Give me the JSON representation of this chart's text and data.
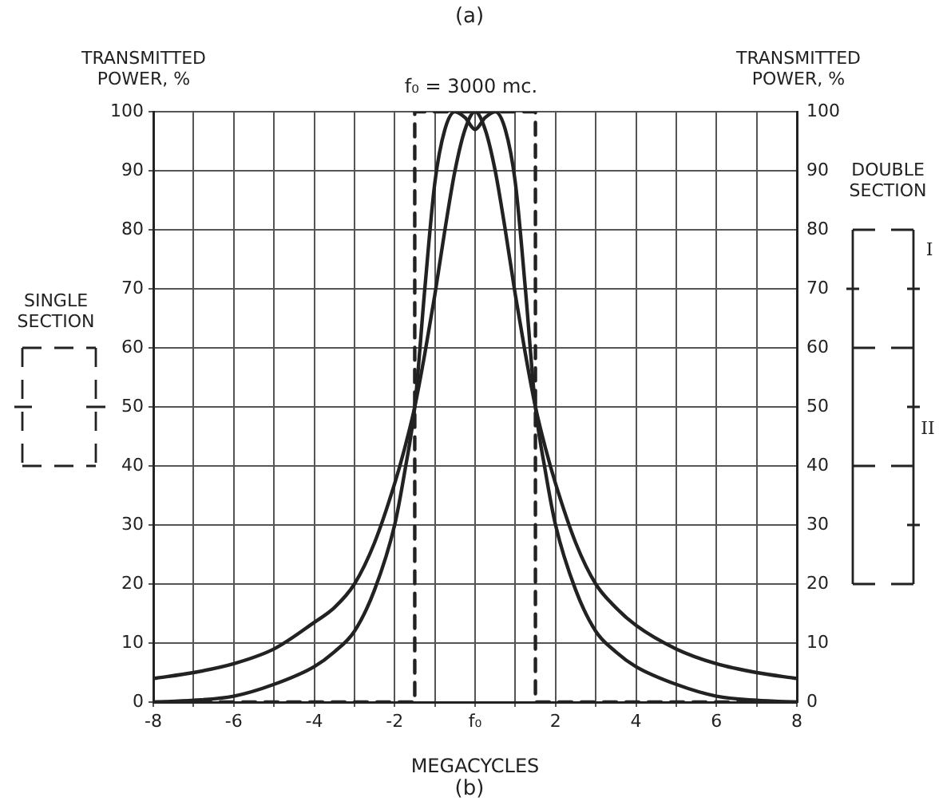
{
  "chart_data": {
    "type": "line",
    "title": "f₀ = 3000 mc.",
    "xlabel": "MEGACYCLES",
    "ylabel": "TRANSMITTED POWER, %",
    "y2label": "TRANSMITTED POWER, %",
    "annotations": [
      "(a)",
      "(b)",
      "SINGLE SECTION",
      "DOUBLE SECTION",
      "I",
      "II"
    ],
    "series": [
      {
        "color": "#222222",
        "x": [
          -8,
          -7,
          -6,
          -5,
          -4,
          -3.5,
          -3,
          -2.5,
          -2,
          -1.75,
          -1.5,
          -1.25,
          -1,
          -0.75,
          -0.5,
          -0.25,
          0,
          0.25,
          0.5,
          0.75,
          1,
          1.25,
          1.5,
          1.75,
          2,
          2.5,
          3,
          3.5,
          4,
          5,
          6,
          7,
          8
        ],
        "values": [
          4,
          5,
          6.5,
          9,
          13.5,
          16,
          20,
          27,
          37,
          43,
          50,
          59,
          69,
          80,
          90,
          97,
          100,
          97,
          90,
          80,
          69,
          59,
          50,
          43,
          37,
          27,
          20,
          16,
          13,
          9,
          6.5,
          5,
          4
        ]
      },
      {
        "color": "#222222",
        "x": [
          -8,
          -7,
          -6,
          -5,
          -4,
          -3.5,
          -3,
          -2.5,
          -2,
          -1.75,
          -1.5,
          -1.25,
          -1,
          -0.75,
          -0.5,
          -0.25,
          0,
          0.25,
          0.5,
          0.75,
          1,
          1.25,
          1.5,
          1.75,
          2,
          2.5,
          3,
          3.5,
          4,
          5,
          6,
          7,
          8
        ],
        "values": [
          0,
          0.3,
          1,
          3,
          6,
          8.5,
          12,
          19,
          30,
          39,
          50,
          70,
          88,
          97,
          100,
          99,
          97,
          99,
          100,
          97,
          88,
          70,
          50,
          39,
          30,
          19,
          12,
          8.5,
          6,
          3,
          1,
          0.3,
          0
        ]
      },
      {
        "color": "#222222",
        "line_style": "dashed",
        "x": [
          -8,
          -1.5,
          -1.5,
          1.5,
          1.5,
          8
        ],
        "values": [
          0,
          0,
          100,
          100,
          0,
          0
        ]
      }
    ],
    "xlim": [
      -8,
      8
    ],
    "xticks": [
      -8,
      {
        "value": -7,
        "label": null
      },
      -6,
      {
        "value": -5,
        "label": null
      },
      -4,
      {
        "value": -3,
        "label": null
      },
      -2,
      {
        "value": -1,
        "label": null
      },
      {
        "value": 0,
        "label": "f₀"
      },
      {
        "value": 1,
        "label": null
      },
      2,
      {
        "value": 3,
        "label": null
      },
      4,
      {
        "value": 5,
        "label": null
      },
      6,
      {
        "value": 7,
        "label": null
      },
      8
    ],
    "ylim": [
      0,
      100
    ],
    "yticks": [
      0,
      10,
      20,
      30,
      40,
      50,
      60,
      70,
      80,
      90,
      100
    ],
    "y2lim": [
      0,
      100
    ],
    "y2ticks": [
      0,
      10,
      20,
      30,
      40,
      50,
      60,
      70,
      80,
      90,
      100
    ],
    "grid": true,
    "legend": false,
    "marker": "none"
  }
}
